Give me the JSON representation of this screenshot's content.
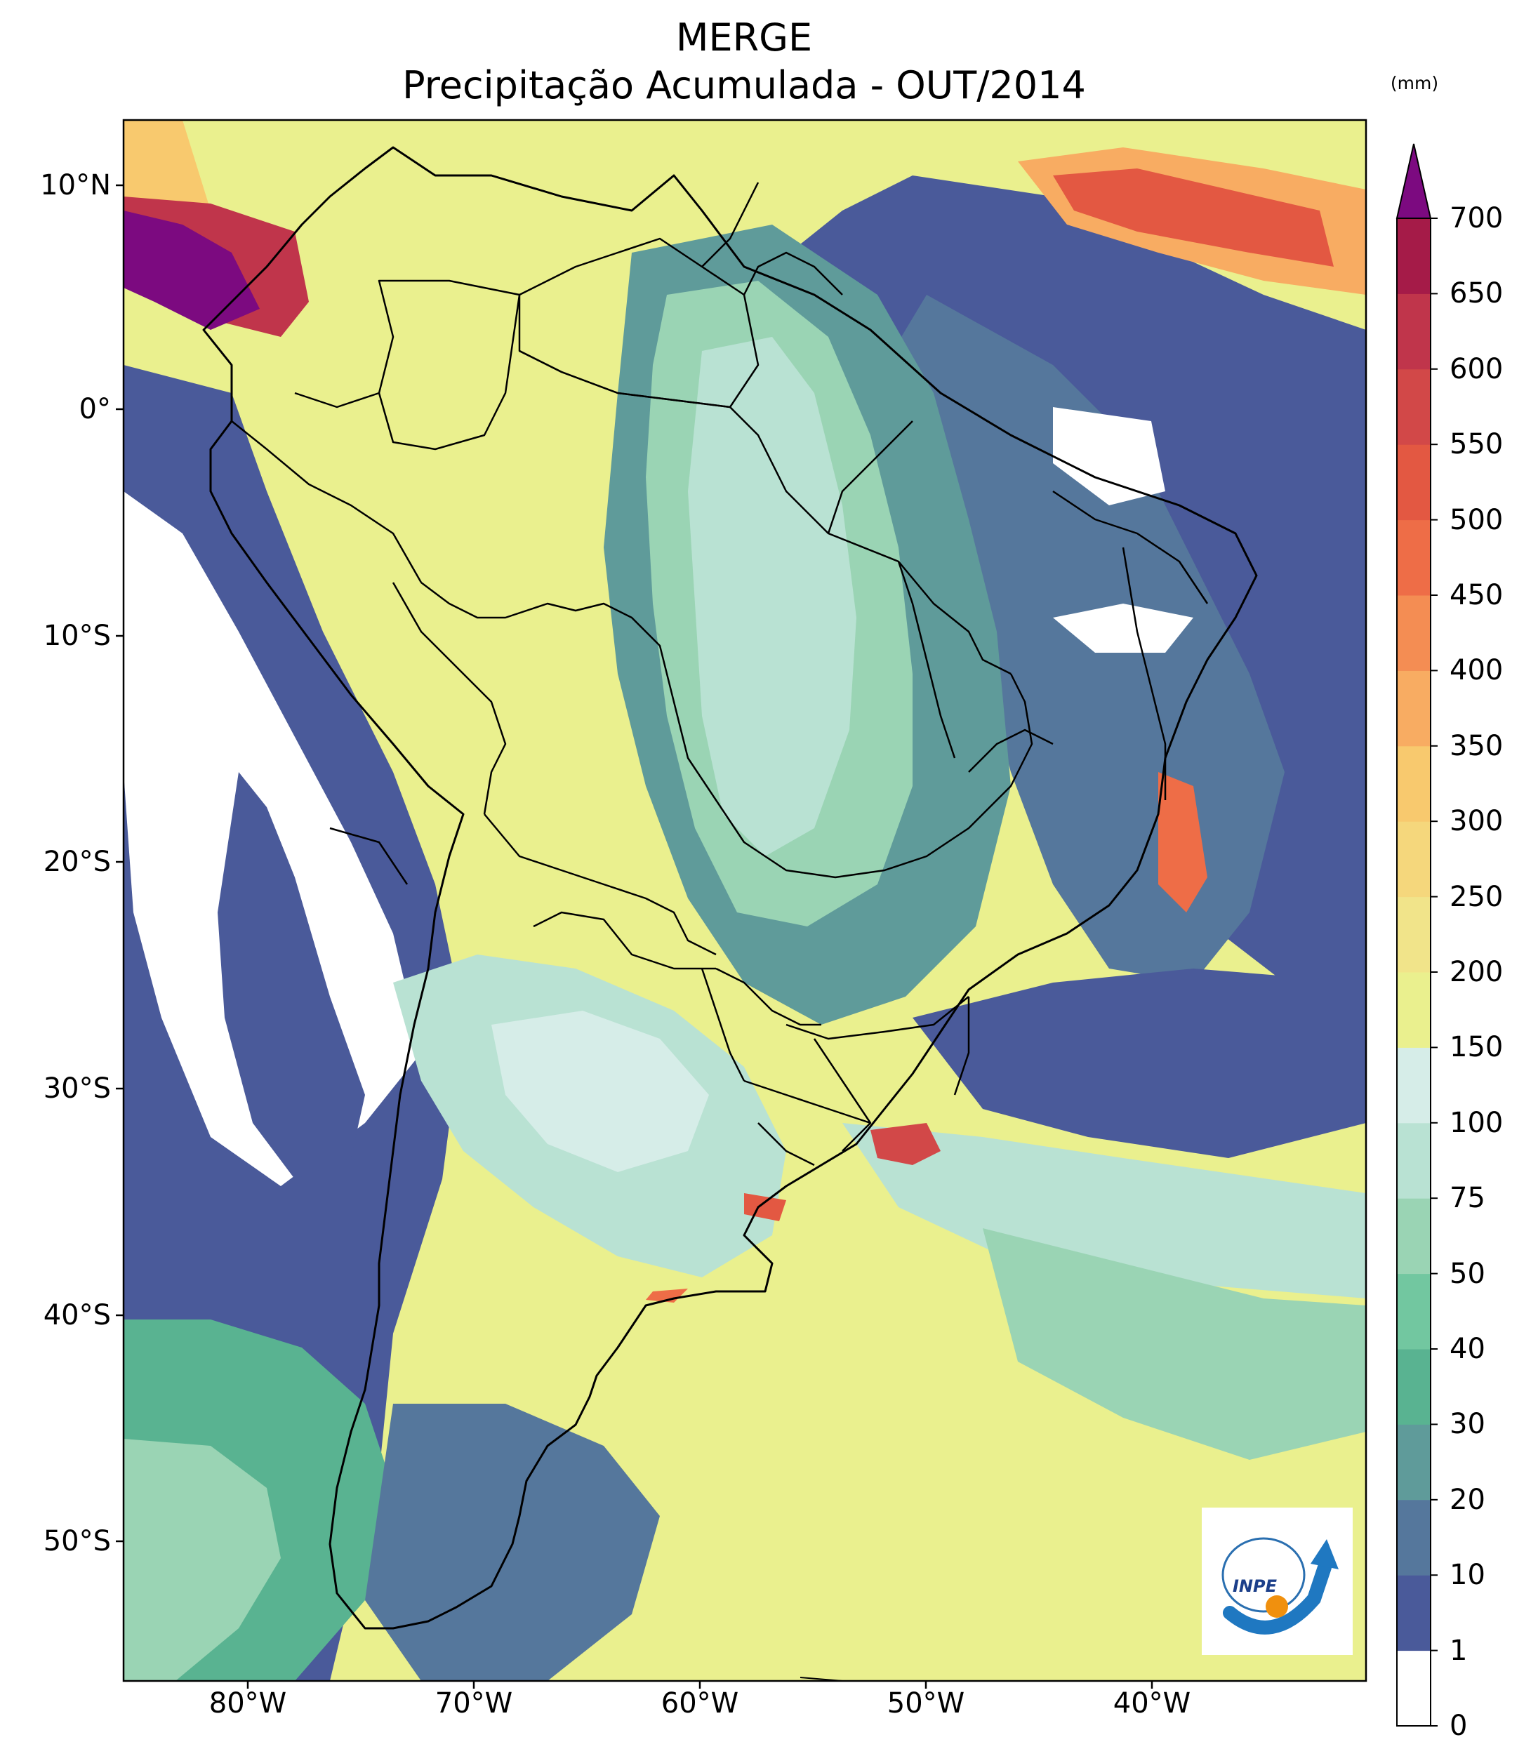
{
  "title": {
    "line1": "MERGE",
    "line2": "Precipitação Acumulada - OUT/2014"
  },
  "map": {
    "lat_ticks": [
      "10°N",
      "0°",
      "10°S",
      "20°S",
      "30°S",
      "40°S",
      "50°S"
    ],
    "lon_ticks": [
      "80°W",
      "70°W",
      "60°W",
      "50°W",
      "40°W"
    ],
    "extent": {
      "lon_min": -85,
      "lon_max": -30,
      "lat_min": -56,
      "lat_max": 13
    }
  },
  "colorbar": {
    "unit": "(mm)",
    "levels": [
      "0",
      "1",
      "10",
      "20",
      "30",
      "40",
      "50",
      "75",
      "100",
      "150",
      "200",
      "250",
      "300",
      "350",
      "400",
      "450",
      "500",
      "550",
      "600",
      "650",
      "700"
    ],
    "colors": [
      "#ffffff",
      "#4a5a9a",
      "#55779c",
      "#5f9b9a",
      "#59b391",
      "#72c7a0",
      "#9ad4b4",
      "#b9e2d3",
      "#d6ede8",
      "#eaf08e",
      "#f1e48a",
      "#f5d77c",
      "#f8c96e",
      "#f8ac62",
      "#f48d53",
      "#ee6d47",
      "#e35842",
      "#d24848",
      "#c0354b",
      "#a51b48",
      "#7c0a80"
    ],
    "extend_color": "#7c0a80"
  },
  "logo": {
    "text": "INPE"
  }
}
